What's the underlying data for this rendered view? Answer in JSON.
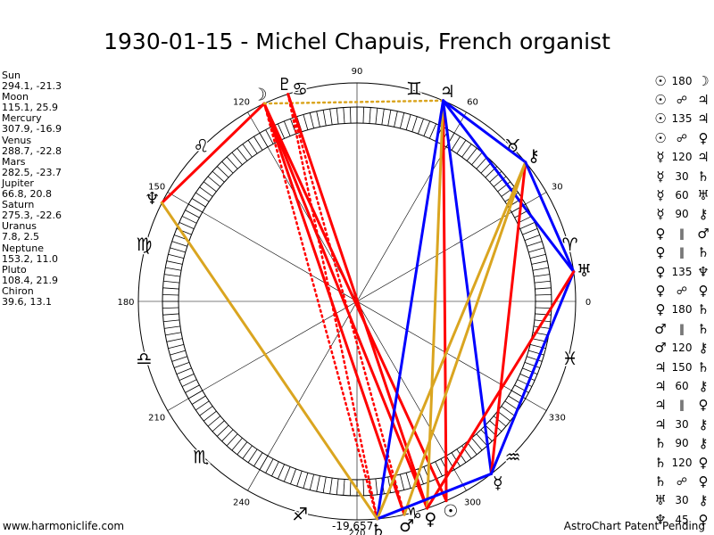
{
  "title": "1930-01-15 - Michel Chapuis, French organist",
  "planets": [
    {
      "name": "Sun",
      "coords": "294.1, -21.3",
      "longitude": 294.1,
      "glyph": "☉"
    },
    {
      "name": "Moon",
      "coords": "115.1, 25.9",
      "longitude": 115.1,
      "glyph": "☽"
    },
    {
      "name": "Mercury",
      "coords": "307.9, -16.9",
      "longitude": 307.9,
      "glyph": "☿"
    },
    {
      "name": "Venus",
      "coords": "288.7, -22.8",
      "longitude": 288.7,
      "glyph": "♀"
    },
    {
      "name": "Mars",
      "coords": "282.5, -23.7",
      "longitude": 282.5,
      "glyph": "♂"
    },
    {
      "name": "Jupiter",
      "coords": "66.8, 20.8",
      "longitude": 66.8,
      "glyph": "♃"
    },
    {
      "name": "Saturn",
      "coords": "275.3, -22.6",
      "longitude": 275.3,
      "glyph": "♄"
    },
    {
      "name": "Uranus",
      "coords": "7.8, 2.5",
      "longitude": 7.8,
      "glyph": "♅"
    },
    {
      "name": "Neptune",
      "coords": "153.2, 11.0",
      "longitude": 153.2,
      "glyph": "♆"
    },
    {
      "name": "Pluto",
      "coords": "108.4, 21.9",
      "longitude": 108.4,
      "glyph": "♇"
    },
    {
      "name": "Chiron",
      "coords": "39.6, 13.1",
      "longitude": 39.6,
      "glyph": "⚷"
    }
  ],
  "aspects": [
    {
      "p1": "☉",
      "sym": "180",
      "p2": "☽"
    },
    {
      "p1": "☉",
      "sym": "☍",
      "p2": "♃"
    },
    {
      "p1": "☉",
      "sym": "135",
      "p2": "♃"
    },
    {
      "p1": "☉",
      "sym": "☍",
      "p2": "♀"
    },
    {
      "p1": "☿",
      "sym": "120",
      "p2": "♃"
    },
    {
      "p1": "☿",
      "sym": "30",
      "p2": "♄"
    },
    {
      "p1": "☿",
      "sym": "60",
      "p2": "♅"
    },
    {
      "p1": "☿",
      "sym": "90",
      "p2": "⚷"
    },
    {
      "p1": "♀",
      "sym": "‖",
      "p2": "♂"
    },
    {
      "p1": "♀",
      "sym": "‖",
      "p2": "♄"
    },
    {
      "p1": "♀",
      "sym": "135",
      "p2": "♆"
    },
    {
      "p1": "♀",
      "sym": "☍",
      "p2": "♀"
    },
    {
      "p1": "♀",
      "sym": "180",
      "p2": "♄"
    },
    {
      "p1": "♂",
      "sym": "‖",
      "p2": "♄"
    },
    {
      "p1": "♂",
      "sym": "120",
      "p2": "⚷"
    },
    {
      "p1": "♃",
      "sym": "150",
      "p2": "♄"
    },
    {
      "p1": "♃",
      "sym": "60",
      "p2": "⚷"
    },
    {
      "p1": "♃",
      "sym": "‖",
      "p2": "♀"
    },
    {
      "p1": "♃",
      "sym": "30",
      "p2": "⚷"
    },
    {
      "p1": "♄",
      "sym": "90",
      "p2": "⚷"
    },
    {
      "p1": "♄",
      "sym": "120",
      "p2": "♀"
    },
    {
      "p1": "♄",
      "sym": "☍",
      "p2": "♀"
    },
    {
      "p1": "♅",
      "sym": "30",
      "p2": "⚷"
    },
    {
      "p1": "♆",
      "sym": "45",
      "p2": "♀"
    }
  ],
  "chart_data": {
    "type": "other",
    "degree_labels": [
      "0",
      "30",
      "60",
      "90",
      "120",
      "150",
      "180",
      "210",
      "240",
      "270",
      "300",
      "330"
    ],
    "zodiac_signs": [
      "♈",
      "♉",
      "♊",
      "♋",
      "♌",
      "♍",
      "♎",
      "♏",
      "♐",
      "♑",
      "♒",
      "♓"
    ],
    "aspect_lines": [
      {
        "from": "Moon",
        "to": "Sun",
        "color": "#ff0000",
        "style": "solid"
      },
      {
        "from": "Moon",
        "to": "Venus",
        "color": "#ff0000",
        "style": "solid"
      },
      {
        "from": "Moon",
        "to": "Mars",
        "color": "#ff0000",
        "style": "solid"
      },
      {
        "from": "Moon",
        "to": "Mars",
        "color": "#ff0000",
        "style": "dotted"
      },
      {
        "from": "Moon",
        "to": "Saturn",
        "color": "#ff0000",
        "style": "dotted"
      },
      {
        "from": "Moon",
        "to": "Neptune",
        "color": "#ff0000",
        "style": "solid"
      },
      {
        "from": "Moon",
        "to": "Jupiter",
        "color": "#daa520",
        "style": "dotted"
      },
      {
        "from": "Pluto",
        "to": "Venus",
        "color": "#ff0000",
        "style": "solid"
      },
      {
        "from": "Pluto",
        "to": "Mars",
        "color": "#ff0000",
        "style": "dotted"
      },
      {
        "from": "Pluto",
        "to": "Saturn",
        "color": "#ff0000",
        "style": "dotted"
      },
      {
        "from": "Jupiter",
        "to": "Sun",
        "color": "#ff0000",
        "style": "solid"
      },
      {
        "from": "Jupiter",
        "to": "Venus",
        "color": "#daa520",
        "style": "solid"
      },
      {
        "from": "Jupiter",
        "to": "Mercury",
        "color": "#0000ff",
        "style": "solid"
      },
      {
        "from": "Jupiter",
        "to": "Uranus",
        "color": "#0000ff",
        "style": "solid"
      },
      {
        "from": "Jupiter",
        "to": "Chiron",
        "color": "#0000ff",
        "style": "solid"
      },
      {
        "from": "Jupiter",
        "to": "Saturn",
        "color": "#0000ff",
        "style": "solid"
      },
      {
        "from": "Chiron",
        "to": "Mercury",
        "color": "#ff0000",
        "style": "solid"
      },
      {
        "from": "Chiron",
        "to": "Mars",
        "color": "#daa520",
        "style": "solid"
      },
      {
        "from": "Chiron",
        "to": "Saturn",
        "color": "#daa520",
        "style": "solid"
      },
      {
        "from": "Chiron",
        "to": "Uranus",
        "color": "#0000ff",
        "style": "solid"
      },
      {
        "from": "Uranus",
        "to": "Mercury",
        "color": "#0000ff",
        "style": "solid"
      },
      {
        "from": "Uranus",
        "to": "Venus",
        "color": "#ff0000",
        "style": "solid"
      },
      {
        "from": "Mercury",
        "to": "Saturn",
        "color": "#0000ff",
        "style": "solid"
      },
      {
        "from": "Neptune",
        "to": "Saturn",
        "color": "#daa520",
        "style": "solid"
      }
    ]
  },
  "footer": {
    "left": "www.harmoniclife.com",
    "right": "AstroChart Patent Pending",
    "counter": "-19,657"
  }
}
